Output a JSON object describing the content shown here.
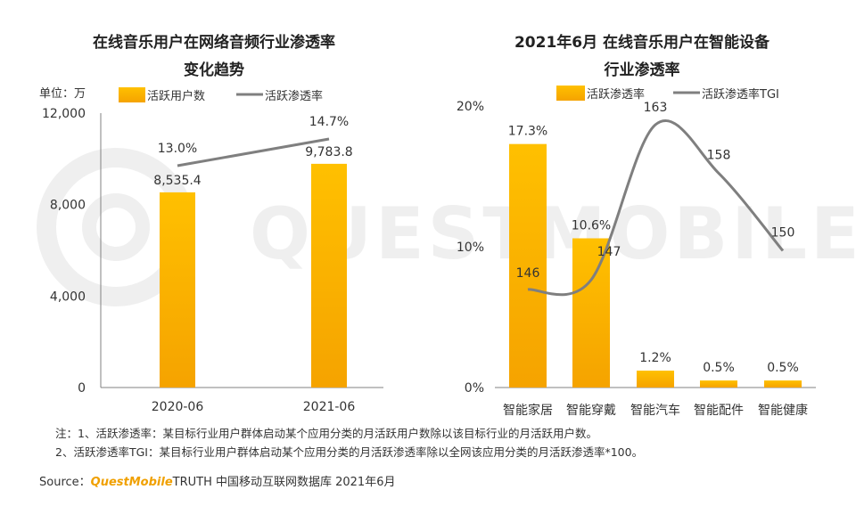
{
  "colors": {
    "bar": "#FFC000",
    "bar_dark": "#F5A300",
    "line": "#7F7F7F",
    "axis": "#808080",
    "text": "#333333",
    "brand": "#F0A000"
  },
  "watermark": "QUESTMOBILE",
  "chart_data": [
    {
      "type": "bar+line",
      "title": "在线音乐用户在网络音频行业渗透率",
      "title_line2": "变化趋势",
      "unit_label": "单位：万",
      "categories": [
        "2020-06",
        "2021-06"
      ],
      "y_ticks": [
        "0",
        "4,000",
        "8,000",
        "12,000"
      ],
      "ylim": [
        0,
        12000
      ],
      "series": [
        {
          "name": "活跃用户数",
          "kind": "bar",
          "values": [
            8535.4,
            9783.8
          ],
          "labels": [
            "8,535.4",
            "9,783.8"
          ]
        },
        {
          "name": "活跃渗透率",
          "kind": "line",
          "values": [
            13.0,
            14.7
          ],
          "labels": [
            "13.0%",
            "14.7%"
          ]
        }
      ]
    },
    {
      "type": "bar+line",
      "title": "2021年6月 在线音乐用户在智能设备",
      "title_line2": "行业渗透率",
      "categories": [
        "智能家居",
        "智能穿戴",
        "智能汽车",
        "智能配件",
        "智能健康"
      ],
      "y_ticks": [
        "0%",
        "10%",
        "20%"
      ],
      "ylim": [
        0,
        20
      ],
      "series": [
        {
          "name": "活跃渗透率",
          "kind": "bar",
          "values": [
            17.3,
            10.6,
            1.2,
            0.5,
            0.5
          ],
          "labels": [
            "17.3%",
            "10.6%",
            "1.2%",
            "0.5%",
            "0.5%"
          ]
        },
        {
          "name": "活跃渗透率TGI",
          "kind": "line",
          "values": [
            146,
            147,
            163,
            158,
            150
          ],
          "labels": [
            "146",
            "147",
            "163",
            "158",
            "150"
          ]
        }
      ]
    }
  ],
  "notes": {
    "line1": "注：1、活跃渗透率：某目标行业用户群体启动某个应用分类的月活跃用户数除以该目标行业的月活跃用户数。",
    "line2": "2、活跃渗透率TGI：某目标行业用户群体启动某个应用分类的月活跃渗透率除以全网该应用分类的月活跃渗透率*100。"
  },
  "source": {
    "prefix": "Source：",
    "brand": "QuestMobile",
    "suffix": "TRUTH 中国移动互联网数据库 2021年6月"
  }
}
